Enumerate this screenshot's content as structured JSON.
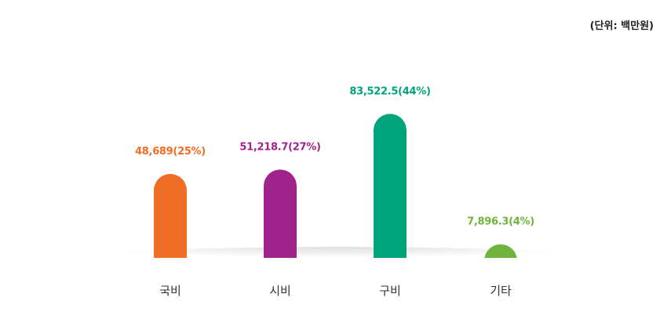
{
  "unit_label": "(단위: 백만원)",
  "chart_data": {
    "type": "bar",
    "categories": [
      "국비",
      "시비",
      "구비",
      "기타"
    ],
    "values": [
      48689,
      51218.7,
      83522.5,
      7896.3
    ],
    "data_labels": [
      "48,689(25%)",
      "51,218.7(27%)",
      "83,522.5(44%)",
      "7,896.3(4%)"
    ],
    "percentages": [
      25,
      27,
      44,
      4
    ],
    "colors": [
      "#f06d25",
      "#a0248c",
      "#00a37a",
      "#6fb43c"
    ],
    "title": "",
    "xlabel": "",
    "ylabel": "",
    "ylim": [
      0,
      100000
    ],
    "grid": false,
    "legend": "none"
  }
}
